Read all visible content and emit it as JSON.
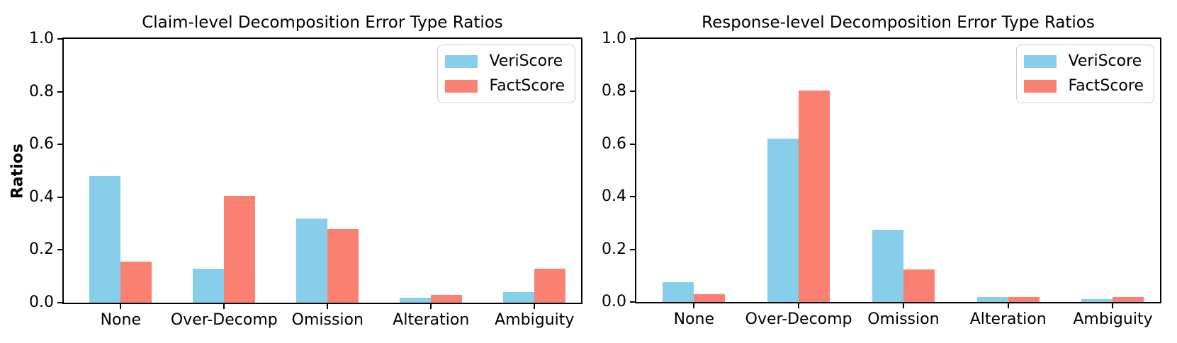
{
  "figure": {
    "background": "#ffffff",
    "axis_color": "#000000",
    "text_color": "#000000"
  },
  "chart_data": [
    {
      "type": "bar",
      "title": "Claim-level Decomposition Error Type Ratios",
      "xlabel": "",
      "ylabel": "Ratios",
      "categories": [
        "None",
        "Over-Decomp",
        "Omission",
        "Alteration",
        "Ambiguity"
      ],
      "series": [
        {
          "name": "VeriScore",
          "color": "#87CEEB",
          "values": [
            0.48,
            0.13,
            0.32,
            0.02,
            0.04
          ]
        },
        {
          "name": "FactScore",
          "color": "#FA8072",
          "values": [
            0.155,
            0.405,
            0.28,
            0.03,
            0.13
          ]
        }
      ],
      "ylim": [
        0,
        1.0
      ],
      "yticks": [
        0,
        0.2,
        0.4,
        0.6,
        0.8,
        1.0
      ],
      "ytick_labels": [
        "0.0",
        "0.2",
        "0.4",
        "0.6",
        "0.8",
        "1.0"
      ],
      "legend_position": "upper-right",
      "grid": false
    },
    {
      "type": "bar",
      "title": "Response-level Decomposition Error Type Ratios",
      "xlabel": "",
      "ylabel": "",
      "categories": [
        "None",
        "Over-Decomp",
        "Omission",
        "Alteration",
        "Ambiguity"
      ],
      "series": [
        {
          "name": "VeriScore",
          "color": "#87CEEB",
          "values": [
            0.075,
            0.62,
            0.275,
            0.02,
            0.01
          ]
        },
        {
          "name": "FactScore",
          "color": "#FA8072",
          "values": [
            0.03,
            0.805,
            0.125,
            0.02,
            0.02
          ]
        }
      ],
      "ylim": [
        0,
        1.0
      ],
      "yticks": [
        0,
        0.2,
        0.4,
        0.6,
        0.8,
        1.0
      ],
      "ytick_labels": [
        "0.0",
        "0.2",
        "0.4",
        "0.6",
        "0.8",
        "1.0"
      ],
      "legend_position": "upper-right",
      "grid": false
    }
  ]
}
